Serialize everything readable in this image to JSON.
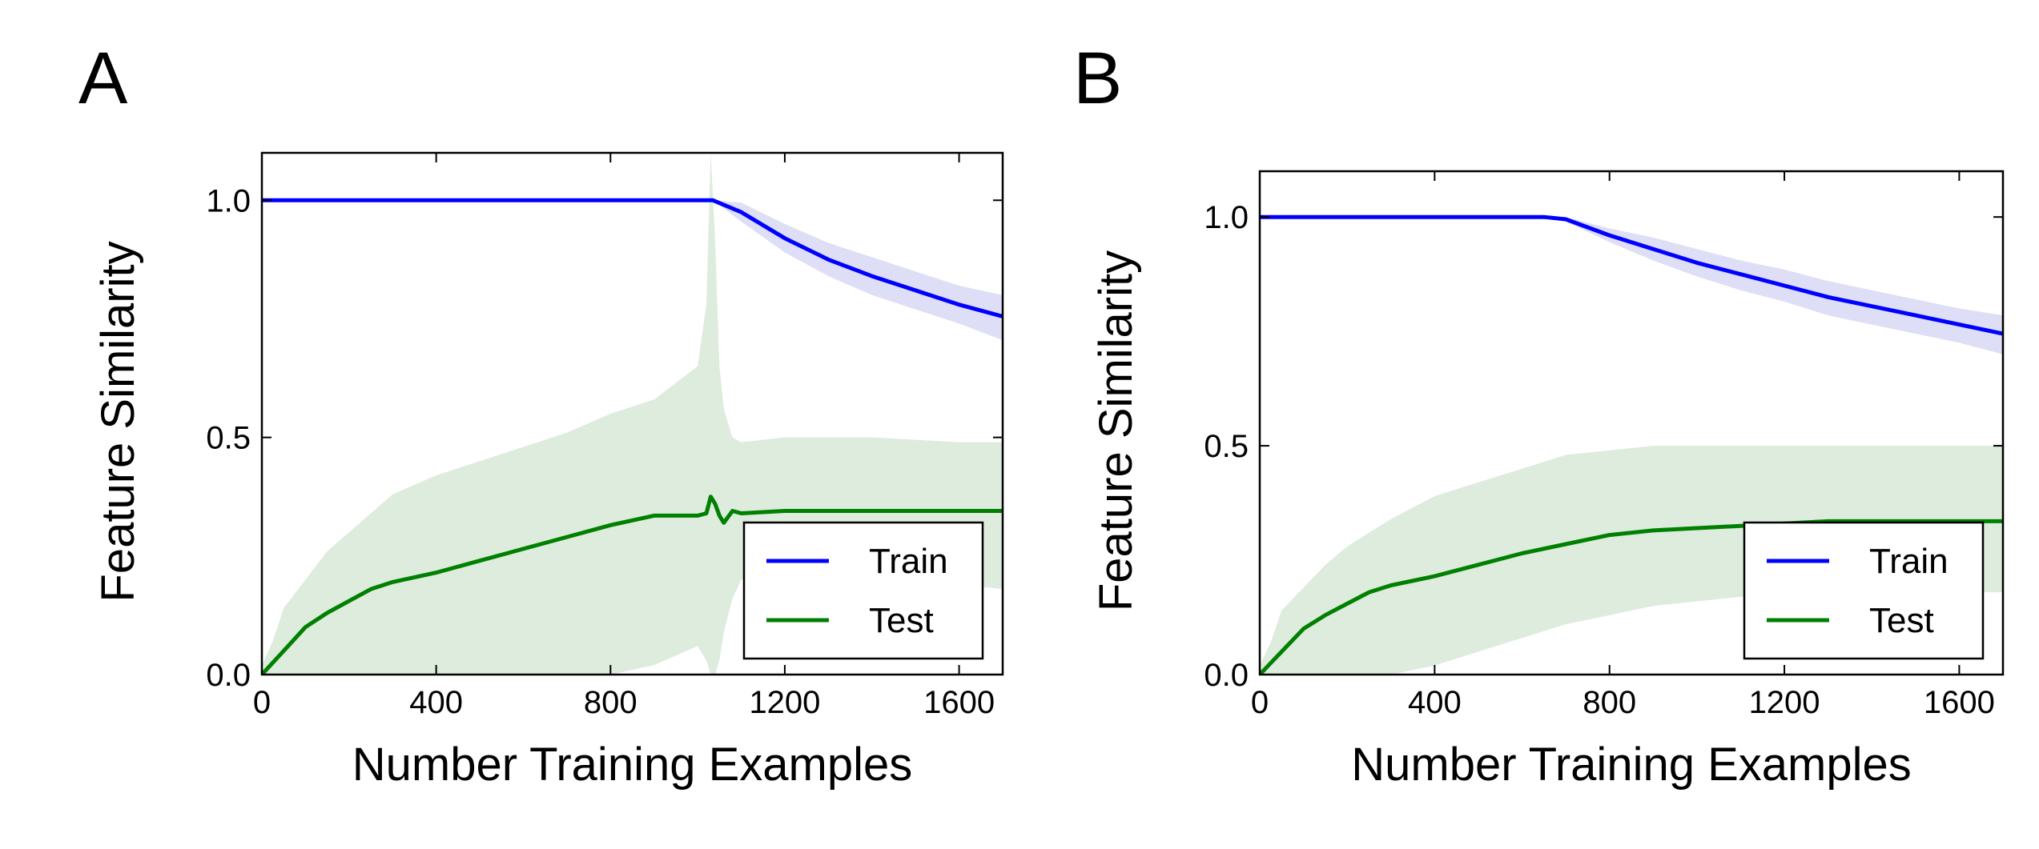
{
  "panels": [
    {
      "letter": "A"
    },
    {
      "letter": "B"
    }
  ],
  "colors": {
    "train": "#0000ff",
    "test": "#008000",
    "train_band": "#c8c8f0",
    "test_band": "#d9ead9"
  },
  "chart_data": [
    {
      "type": "line",
      "panel": "A",
      "xlabel": "Number Training Examples",
      "ylabel": "Feature Similarity",
      "xlim": [
        0,
        1700
      ],
      "ylim": [
        0,
        1.1
      ],
      "xticks": [
        0,
        400,
        800,
        1200,
        1600
      ],
      "yticks": [
        0.0,
        0.5,
        1.0
      ],
      "xtick_labels": [
        "0",
        "400",
        "800",
        "1200",
        "1600"
      ],
      "ytick_labels": [
        "0.0",
        "0.5",
        "1.0"
      ],
      "legend_position": "lower right",
      "series": [
        {
          "name": "Train",
          "color": "#0000ff",
          "x": [
            0,
            200,
            400,
            600,
            800,
            1000,
            1035,
            1100,
            1200,
            1300,
            1400,
            1500,
            1600,
            1700
          ],
          "values": [
            1.0,
            1.0,
            1.0,
            1.0,
            1.0,
            1.0,
            1.0,
            0.975,
            0.92,
            0.875,
            0.84,
            0.81,
            0.78,
            0.755
          ],
          "lower": [
            1.0,
            1.0,
            1.0,
            1.0,
            1.0,
            1.0,
            1.0,
            0.955,
            0.89,
            0.84,
            0.8,
            0.77,
            0.74,
            0.705
          ],
          "upper": [
            1.0,
            1.0,
            1.0,
            1.0,
            1.0,
            1.0,
            1.0,
            0.995,
            0.95,
            0.91,
            0.88,
            0.85,
            0.82,
            0.8
          ]
        },
        {
          "name": "Test",
          "color": "#008000",
          "x": [
            0,
            25,
            50,
            100,
            150,
            200,
            250,
            300,
            400,
            500,
            600,
            700,
            800,
            900,
            1000,
            1020,
            1030,
            1040,
            1050,
            1060,
            1080,
            1100,
            1200,
            1400,
            1600,
            1700
          ],
          "values": [
            0.0,
            0.025,
            0.05,
            0.1,
            0.13,
            0.155,
            0.18,
            0.195,
            0.215,
            0.24,
            0.265,
            0.29,
            0.315,
            0.335,
            0.335,
            0.34,
            0.375,
            0.36,
            0.335,
            0.32,
            0.345,
            0.34,
            0.345,
            0.345,
            0.345,
            0.345
          ],
          "lower": [
            0.0,
            0.0,
            0.0,
            0.0,
            0.0,
            0.0,
            0.0,
            0.0,
            0.0,
            0.0,
            0.0,
            0.0,
            0.0,
            0.02,
            0.06,
            0.03,
            0.0,
            0.0,
            0.03,
            0.09,
            0.16,
            0.2,
            0.23,
            0.22,
            0.19,
            0.18
          ],
          "upper": [
            0.02,
            0.07,
            0.14,
            0.2,
            0.26,
            0.3,
            0.34,
            0.38,
            0.42,
            0.45,
            0.48,
            0.51,
            0.55,
            0.58,
            0.65,
            0.78,
            1.1,
            0.92,
            0.65,
            0.56,
            0.5,
            0.49,
            0.5,
            0.5,
            0.49,
            0.49
          ]
        }
      ]
    },
    {
      "type": "line",
      "panel": "B",
      "xlabel": "Number Training Examples",
      "ylabel": "Feature Similarity",
      "xlim": [
        0,
        1700
      ],
      "ylim": [
        0,
        1.1
      ],
      "xticks": [
        0,
        400,
        800,
        1200,
        1600
      ],
      "yticks": [
        0.0,
        0.5,
        1.0
      ],
      "xtick_labels": [
        "0",
        "400",
        "800",
        "1200",
        "1600"
      ],
      "ytick_labels": [
        "0.0",
        "0.5",
        "1.0"
      ],
      "legend_position": "lower right",
      "series": [
        {
          "name": "Train",
          "color": "#0000ff",
          "x": [
            0,
            200,
            400,
            600,
            650,
            700,
            800,
            900,
            1000,
            1100,
            1200,
            1300,
            1400,
            1500,
            1600,
            1700
          ],
          "values": [
            1.0,
            1.0,
            1.0,
            1.0,
            1.0,
            0.995,
            0.96,
            0.93,
            0.9,
            0.875,
            0.85,
            0.825,
            0.805,
            0.785,
            0.765,
            0.745
          ],
          "lower": [
            1.0,
            1.0,
            1.0,
            1.0,
            1.0,
            0.99,
            0.945,
            0.905,
            0.87,
            0.84,
            0.815,
            0.785,
            0.765,
            0.745,
            0.725,
            0.7
          ],
          "upper": [
            1.0,
            1.0,
            1.0,
            1.0,
            1.0,
            1.0,
            0.975,
            0.955,
            0.93,
            0.905,
            0.885,
            0.86,
            0.84,
            0.82,
            0.8,
            0.785
          ]
        },
        {
          "name": "Test",
          "color": "#008000",
          "x": [
            0,
            25,
            50,
            100,
            150,
            200,
            250,
            300,
            400,
            500,
            600,
            700,
            800,
            900,
            1000,
            1100,
            1200,
            1300,
            1400,
            1500,
            1600,
            1700
          ],
          "values": [
            0.0,
            0.025,
            0.05,
            0.1,
            0.13,
            0.155,
            0.18,
            0.195,
            0.215,
            0.24,
            0.265,
            0.285,
            0.305,
            0.315,
            0.32,
            0.325,
            0.33,
            0.335,
            0.335,
            0.335,
            0.335,
            0.335
          ],
          "lower": [
            0.0,
            0.0,
            0.0,
            0.0,
            0.0,
            0.0,
            0.0,
            0.0,
            0.02,
            0.05,
            0.08,
            0.11,
            0.13,
            0.15,
            0.16,
            0.17,
            0.175,
            0.18,
            0.18,
            0.18,
            0.18,
            0.18
          ],
          "upper": [
            0.02,
            0.07,
            0.14,
            0.19,
            0.24,
            0.28,
            0.31,
            0.34,
            0.39,
            0.42,
            0.45,
            0.48,
            0.49,
            0.5,
            0.5,
            0.5,
            0.5,
            0.5,
            0.5,
            0.5,
            0.5,
            0.5
          ]
        }
      ]
    }
  ]
}
